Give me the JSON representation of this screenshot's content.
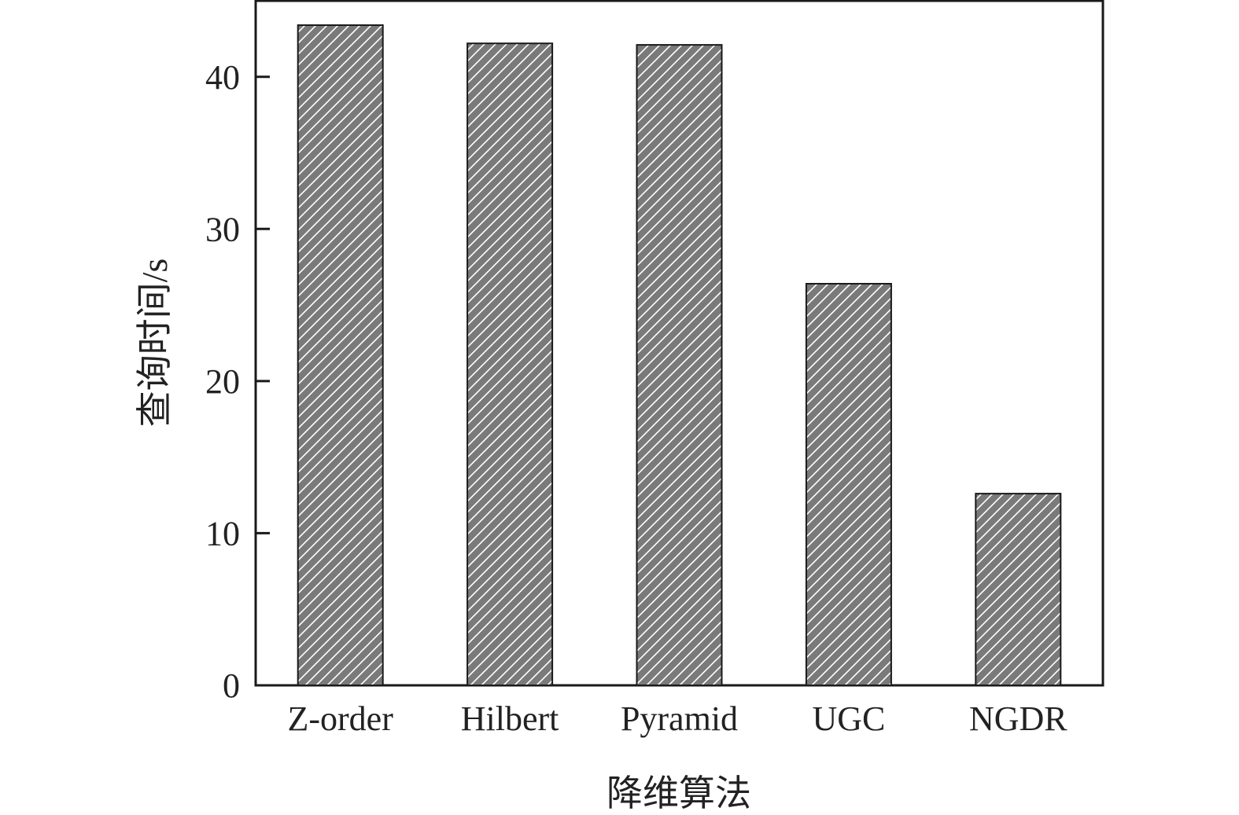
{
  "chart_data": {
    "type": "bar",
    "categories": [
      "Z-order",
      "Hilbert",
      "Pyramid",
      "UGC",
      "NGDR"
    ],
    "values": [
      43.4,
      42.2,
      42.1,
      26.4,
      12.6
    ],
    "xlabel": "降维算法",
    "ylabel": "查询时间/s",
    "ylim": [
      0,
      45
    ],
    "yticks": [
      0,
      10,
      20,
      30,
      40
    ],
    "grid": false,
    "legend": "none",
    "bar_fill": "#7a7a7a",
    "hatch_color": "#ffffff",
    "bar_edge": "#1a1a1a",
    "axis_color": "#1a1a1a"
  }
}
